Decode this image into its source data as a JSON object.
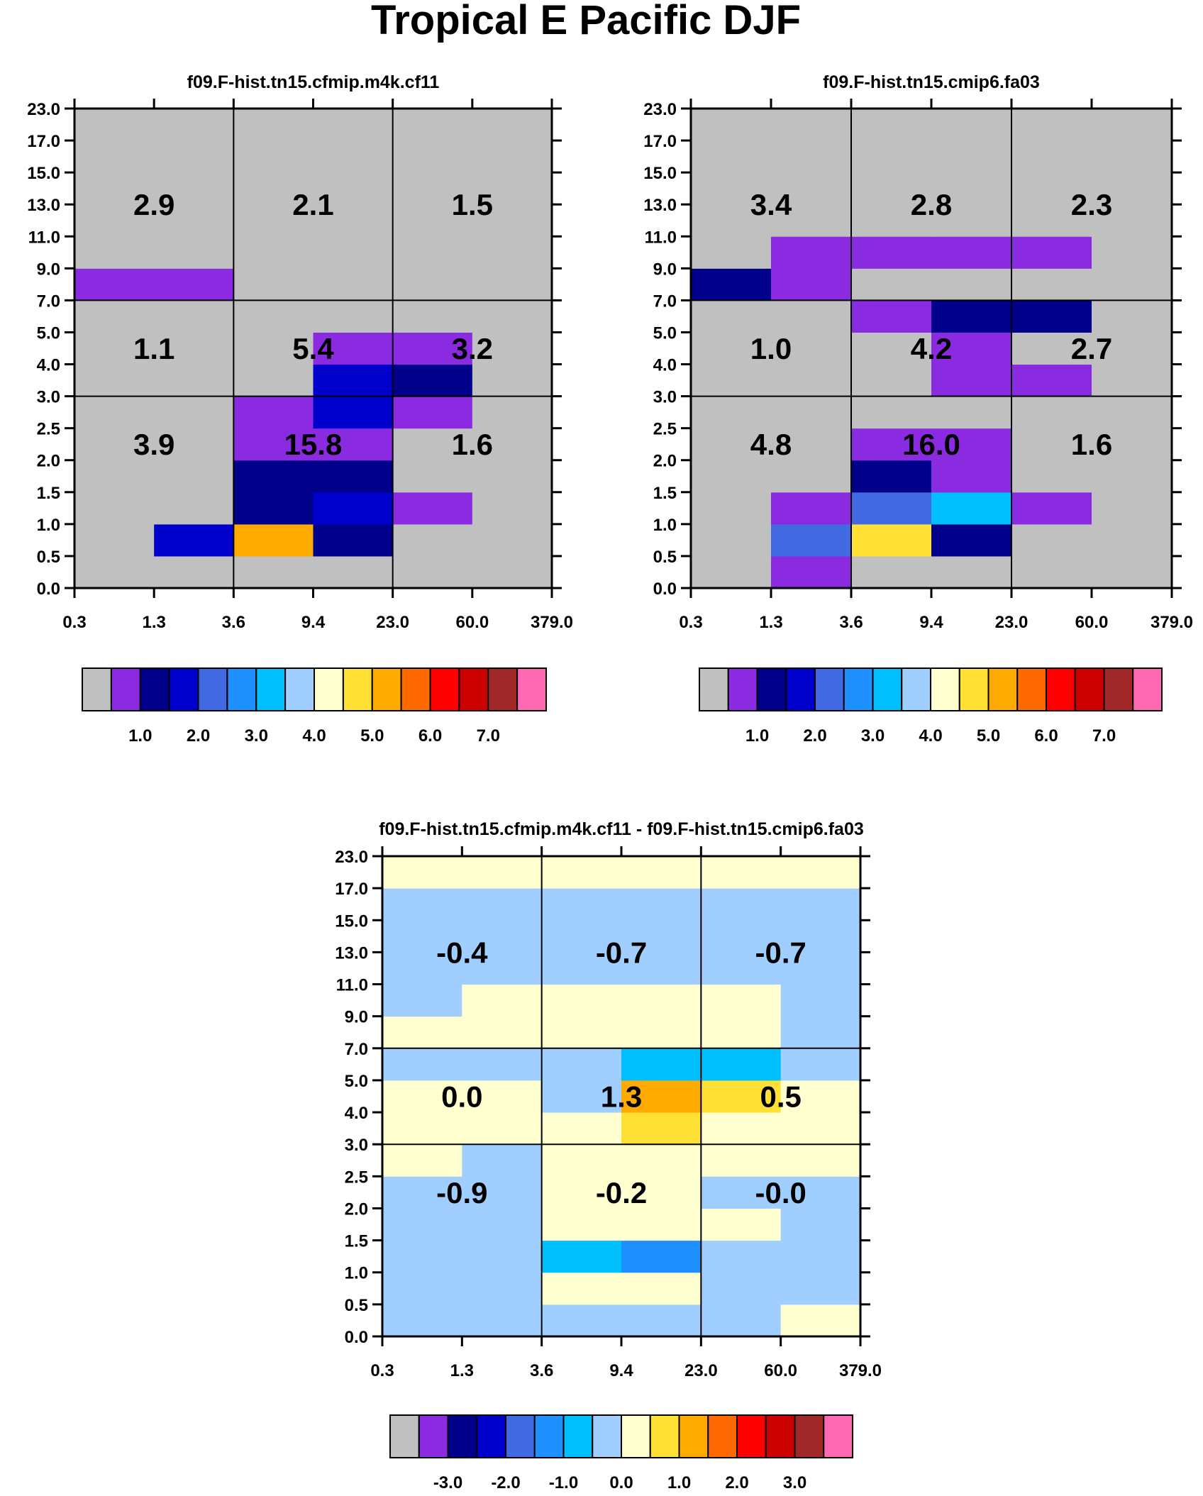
{
  "title": "Tropical E Pacific DJF",
  "palette": {
    "abs": [
      "#c0c0c0",
      "#8a2be2",
      "#00008b",
      "#0000cd",
      "#4169e1",
      "#1e90ff",
      "#00bfff",
      "#a0cfff",
      "#ffffd0",
      "#ffe135",
      "#ffaa00",
      "#ff6a00",
      "#ff0000",
      "#cd0000",
      "#a02828",
      "#ff69b4"
    ],
    "diff": [
      "#c0c0c0",
      "#8a2be2",
      "#00008b",
      "#0000cd",
      "#4169e1",
      "#1e90ff",
      "#00bfff",
      "#a0cfff",
      "#ffffd0",
      "#ffe135",
      "#ffaa00",
      "#ff6a00",
      "#ff0000",
      "#cd0000",
      "#a02828",
      "#ff69b4"
    ]
  },
  "chart_data": [
    {
      "type": "heatmap",
      "title": "f09.F-hist.tn15.cfmip.m4k.cf11",
      "x_ticks": [
        "0.3",
        "1.3",
        "3.6",
        "9.4",
        "23.0",
        "60.0",
        "379.0"
      ],
      "y_ticks": [
        "0.0",
        "0.5",
        "1.0",
        "1.5",
        "2.0",
        "2.5",
        "3.0",
        "4.0",
        "5.0",
        "7.0",
        "9.0",
        "11.0",
        "13.0",
        "15.0",
        "17.0",
        "23.0"
      ],
      "group_labels": [
        [
          "3.9",
          "15.8",
          "1.6"
        ],
        [
          "1.1",
          "5.4",
          "3.2"
        ],
        [
          "2.9",
          "2.1",
          "1.5"
        ]
      ],
      "cells": [
        [
          0,
          0,
          0,
          0,
          0,
          0
        ],
        [
          0,
          3,
          10,
          2,
          0,
          0
        ],
        [
          0,
          0,
          2,
          3,
          1,
          0
        ],
        [
          0,
          0,
          2,
          2,
          0,
          0
        ],
        [
          0,
          0,
          1,
          1,
          0,
          0
        ],
        [
          0,
          0,
          1,
          3,
          1,
          0
        ],
        [
          0,
          0,
          0,
          3,
          2,
          0
        ],
        [
          0,
          0,
          0,
          1,
          1,
          0
        ],
        [
          0,
          0,
          0,
          0,
          0,
          0
        ],
        [
          1,
          1,
          0,
          0,
          0,
          0
        ],
        [
          0,
          0,
          0,
          0,
          0,
          0
        ],
        [
          0,
          0,
          0,
          0,
          0,
          0
        ],
        [
          0,
          0,
          0,
          0,
          0,
          0
        ],
        [
          0,
          0,
          0,
          0,
          0,
          0
        ],
        [
          0,
          0,
          0,
          0,
          0,
          0
        ]
      ],
      "colorbar_labels": [
        "1.0",
        "2.0",
        "3.0",
        "4.0",
        "5.0",
        "6.0",
        "7.0"
      ]
    },
    {
      "type": "heatmap",
      "title": "f09.F-hist.tn15.cmip6.fa03",
      "x_ticks": [
        "0.3",
        "1.3",
        "3.6",
        "9.4",
        "23.0",
        "60.0",
        "379.0"
      ],
      "y_ticks": [
        "0.0",
        "0.5",
        "1.0",
        "1.5",
        "2.0",
        "2.5",
        "3.0",
        "4.0",
        "5.0",
        "7.0",
        "9.0",
        "11.0",
        "13.0",
        "15.0",
        "17.0",
        "23.0"
      ],
      "group_labels": [
        [
          "4.8",
          "16.0",
          "1.6"
        ],
        [
          "1.0",
          "4.2",
          "2.7"
        ],
        [
          "3.4",
          "2.8",
          "2.3"
        ]
      ],
      "cells": [
        [
          0,
          1,
          0,
          0,
          0,
          0
        ],
        [
          0,
          4,
          9,
          2,
          0,
          0
        ],
        [
          0,
          1,
          4,
          6,
          1,
          0
        ],
        [
          0,
          0,
          2,
          1,
          0,
          0
        ],
        [
          0,
          0,
          1,
          1,
          0,
          0
        ],
        [
          0,
          0,
          0,
          0,
          0,
          0
        ],
        [
          0,
          0,
          0,
          1,
          1,
          0
        ],
        [
          0,
          0,
          0,
          1,
          0,
          0
        ],
        [
          0,
          0,
          1,
          2,
          2,
          0
        ],
        [
          2,
          1,
          0,
          0,
          0,
          0
        ],
        [
          0,
          1,
          1,
          1,
          1,
          0
        ],
        [
          0,
          0,
          0,
          0,
          0,
          0
        ],
        [
          0,
          0,
          0,
          0,
          0,
          0
        ],
        [
          0,
          0,
          0,
          0,
          0,
          0
        ],
        [
          0,
          0,
          0,
          0,
          0,
          0
        ]
      ],
      "colorbar_labels": [
        "1.0",
        "2.0",
        "3.0",
        "4.0",
        "5.0",
        "6.0",
        "7.0"
      ]
    },
    {
      "type": "heatmap",
      "title": "f09.F-hist.tn15.cfmip.m4k.cf11 - f09.F-hist.tn15.cmip6.fa03",
      "x_ticks": [
        "0.3",
        "1.3",
        "3.6",
        "9.4",
        "23.0",
        "60.0",
        "379.0"
      ],
      "y_ticks": [
        "0.0",
        "0.5",
        "1.0",
        "1.5",
        "2.0",
        "2.5",
        "3.0",
        "4.0",
        "5.0",
        "7.0",
        "9.0",
        "11.0",
        "13.0",
        "15.0",
        "17.0",
        "23.0"
      ],
      "group_labels": [
        [
          "-0.9",
          "-0.2",
          "-0.0"
        ],
        [
          "0.0",
          "1.3",
          "0.5"
        ],
        [
          "-0.4",
          "-0.7",
          "-0.7"
        ]
      ],
      "cells": [
        [
          7,
          7,
          7,
          7,
          7,
          8
        ],
        [
          7,
          7,
          8,
          8,
          7,
          7
        ],
        [
          7,
          7,
          6,
          5,
          7,
          7
        ],
        [
          7,
          7,
          8,
          8,
          8,
          7
        ],
        [
          7,
          7,
          8,
          8,
          7,
          7
        ],
        [
          8,
          7,
          8,
          8,
          8,
          8
        ],
        [
          8,
          8,
          8,
          9,
          8,
          8
        ],
        [
          8,
          8,
          7,
          10,
          9,
          8
        ],
        [
          7,
          7,
          7,
          6,
          6,
          7
        ],
        [
          8,
          8,
          8,
          8,
          8,
          7
        ],
        [
          7,
          8,
          8,
          8,
          8,
          7
        ],
        [
          7,
          7,
          7,
          7,
          7,
          7
        ],
        [
          7,
          7,
          7,
          7,
          7,
          7
        ],
        [
          7,
          7,
          7,
          7,
          7,
          7
        ],
        [
          8,
          8,
          8,
          8,
          8,
          8
        ]
      ],
      "colorbar_labels": [
        "-3.0",
        "-2.0",
        "-1.0",
        "0.0",
        "1.0",
        "2.0",
        "3.0"
      ]
    }
  ]
}
